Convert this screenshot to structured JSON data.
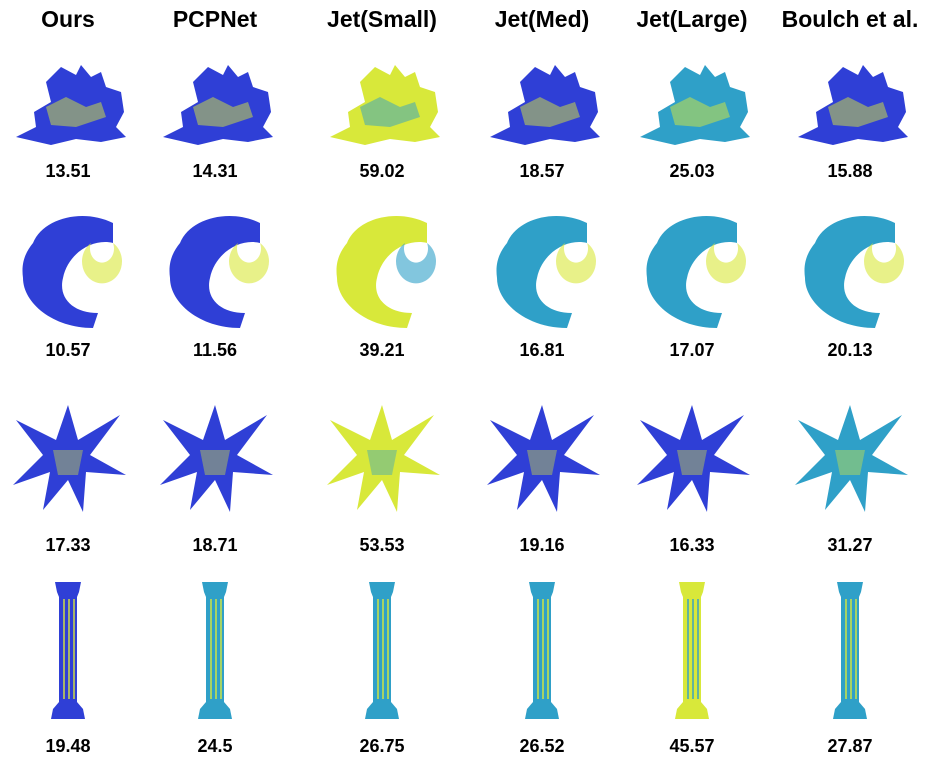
{
  "columns": [
    {
      "key": "ours",
      "label": "Ours"
    },
    {
      "key": "pcpnet",
      "label": "PCPNet"
    },
    {
      "key": "jet_small",
      "label": "Jet(Small)"
    },
    {
      "key": "jet_med",
      "label": "Jet(Med)"
    },
    {
      "key": "jet_large",
      "label": "Jet(Large)"
    },
    {
      "key": "boulch",
      "label": "Boulch et al."
    }
  ],
  "rows": [
    {
      "shape": "dragon",
      "values": [
        "13.51",
        "14.31",
        "59.02",
        "18.57",
        "25.03",
        "15.88"
      ]
    },
    {
      "shape": "tube",
      "values": [
        "10.57",
        "11.56",
        "39.21",
        "16.81",
        "17.07",
        "20.13"
      ]
    },
    {
      "shape": "star",
      "values": [
        "17.33",
        "18.71",
        "53.53",
        "19.16",
        "16.33",
        "31.27"
      ]
    },
    {
      "shape": "column",
      "values": [
        "19.48",
        "24.5",
        "26.75",
        "26.52",
        "45.57",
        "27.87"
      ]
    }
  ],
  "colors": {
    "low_error": "#2f3fd6",
    "mid_error": "#2fa0c8",
    "high_error": "#d8e83a"
  }
}
